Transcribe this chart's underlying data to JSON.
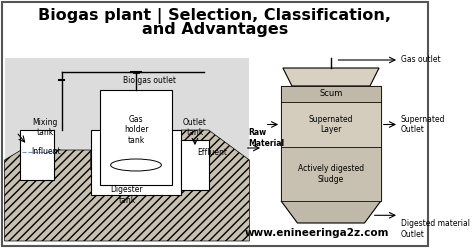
{
  "title_line1": "Biogas plant | Selection, Classification,",
  "title_line2": "and Advantages",
  "bg_color": "#ffffff",
  "border_color": "#555555",
  "diagram_bg": "#dcdcdc",
  "website": "www.enineeringa2z.com",
  "left_labels": {
    "mixing_tank": "Mixing\ntank",
    "influent": "Influent",
    "gas_holder": "Gas\nholder\ntank",
    "digester": "Digester\ntank",
    "biogas_outlet": "Bio gas outlet",
    "outlet_tank": "Outlet\ntank",
    "effluent": "Effluent",
    "raw_material": "Raw\nMaterial"
  },
  "right_labels": {
    "gas_outlet": "Gas outlet",
    "scum": "Scum",
    "supernated_layer": "Supernated\nLayer",
    "supernated_outlet": "Supernated\nOutlet",
    "actively_digested": "Actively digested\nSludge",
    "digested_outlet": "Digested material\nOutlet"
  },
  "title_fontsize": 11.5,
  "label_fontsize": 5.5,
  "website_fontsize": 7.5,
  "hatch_bg": "#d0c8b8",
  "tank_wall": "#ffffff",
  "scum_fill": "#c8c0b0",
  "supernated_fill": "#d8d0c0",
  "sludge_fill": "#c0b8a8"
}
